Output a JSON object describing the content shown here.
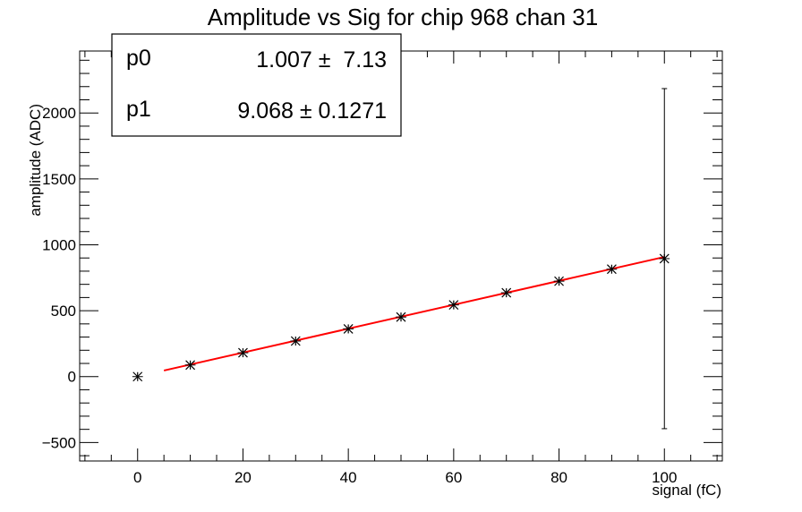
{
  "chart_data": {
    "type": "scatter",
    "title": "Amplitude vs Sig for chip 968 chan 31",
    "xlabel": "signal (fC)",
    "ylabel": "amplitude (ADC)",
    "xlim": [
      -11,
      111
    ],
    "ylim": [
      -640,
      2470
    ],
    "xticks": [
      0,
      20,
      40,
      60,
      80,
      100
    ],
    "yticks": [
      -500,
      0,
      500,
      1000,
      1500,
      2000
    ],
    "grid": false,
    "series": [
      {
        "x": [
          0,
          10,
          20,
          30,
          40,
          50,
          60,
          70,
          80,
          90,
          100
        ],
        "y": [
          0,
          88,
          181,
          270,
          362,
          452,
          544,
          636,
          724,
          815,
          895
        ],
        "yerr": [
          5,
          5,
          5,
          5,
          5,
          5,
          5,
          5,
          5,
          5,
          1290
        ],
        "xerr": [
          1,
          1,
          1,
          1,
          1,
          1,
          1,
          1,
          1,
          1,
          1
        ]
      }
    ],
    "fit": {
      "x_range": [
        5,
        100
      ],
      "p0": 1.007,
      "p1": 9.068,
      "color": "#ff0000"
    },
    "stats_box": {
      "rows": [
        {
          "name": "p0",
          "value": "1.007 ±  7.13"
        },
        {
          "name": "p1",
          "value": "9.068 ± 0.1271"
        }
      ]
    }
  }
}
